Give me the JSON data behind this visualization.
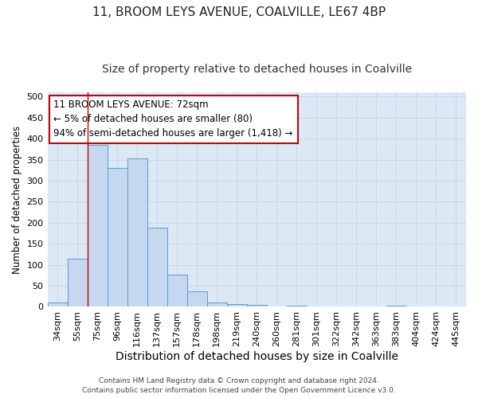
{
  "title_line1": "11, BROOM LEYS AVENUE, COALVILLE, LE67 4BP",
  "title_line2": "Size of property relative to detached houses in Coalville",
  "xlabel": "Distribution of detached houses by size in Coalville",
  "ylabel": "Number of detached properties",
  "footer_line1": "Contains HM Land Registry data © Crown copyright and database right 2024.",
  "footer_line2": "Contains public sector information licensed under the Open Government Licence v3.0.",
  "categories": [
    "34sqm",
    "55sqm",
    "75sqm",
    "96sqm",
    "116sqm",
    "137sqm",
    "157sqm",
    "178sqm",
    "198sqm",
    "219sqm",
    "240sqm",
    "260sqm",
    "281sqm",
    "301sqm",
    "322sqm",
    "342sqm",
    "363sqm",
    "383sqm",
    "404sqm",
    "424sqm",
    "445sqm"
  ],
  "values": [
    10,
    115,
    385,
    330,
    352,
    188,
    76,
    36,
    11,
    6,
    4,
    0,
    3,
    0,
    0,
    0,
    0,
    2,
    0,
    0,
    1
  ],
  "bar_color": "#c5d8ef",
  "bar_edge_color": "#5b9bd5",
  "annotation_text": "11 BROOM LEYS AVENUE: 72sqm\n← 5% of detached houses are smaller (80)\n94% of semi-detached houses are larger (1,418) →",
  "annotation_box_color": "#ffffff",
  "annotation_box_edge_color": "#cc0000",
  "vline_color": "#cc0000",
  "vline_x_index": 2.0,
  "ylim": [
    0,
    510
  ],
  "yticks": [
    0,
    50,
    100,
    150,
    200,
    250,
    300,
    350,
    400,
    450,
    500
  ],
  "background_color": "#ffffff",
  "grid_color": "#c8d4e8",
  "title1_fontsize": 11,
  "title2_fontsize": 10,
  "xlabel_fontsize": 10,
  "ylabel_fontsize": 8.5,
  "tick_fontsize": 8,
  "annotation_fontsize": 8.5,
  "footer_fontsize": 6.5
}
